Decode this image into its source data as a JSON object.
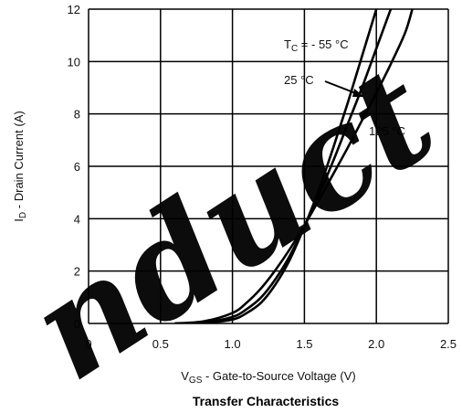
{
  "chart_data": {
    "type": "line",
    "title": "Transfer Characteristics",
    "xlabel": {
      "main": "V",
      "sub": "GS",
      "rest": " - Gate-to-Source Voltage (V)"
    },
    "ylabel": {
      "main": "I",
      "sub": "D",
      "rest": " -  Drain Current (A)"
    },
    "xlim": [
      0,
      2.5
    ],
    "ylim": [
      0,
      12
    ],
    "xticks": [
      0,
      0.5,
      1.0,
      1.5,
      2.0,
      2.5
    ],
    "xtick_labels": [
      "0",
      "0.5",
      "1.0",
      "1.5",
      "2.0",
      "2.5"
    ],
    "yticks": [
      0,
      2,
      4,
      6,
      8,
      10,
      12
    ],
    "ytick_labels": [
      "0",
      "2",
      "4",
      "6",
      "8",
      "10",
      "12"
    ],
    "grid": true,
    "series": [
      {
        "name": "-55 °C",
        "x": [
          0.6,
          0.8,
          1.0,
          1.1,
          1.2,
          1.3,
          1.4,
          1.5,
          1.6,
          1.7,
          1.8,
          1.9,
          2.0
        ],
        "y": [
          0,
          0.02,
          0.15,
          0.4,
          0.8,
          1.5,
          2.45,
          3.7,
          5.1,
          6.7,
          8.4,
          10.2,
          12.0
        ]
      },
      {
        "name": "25 °C",
        "x": [
          0.6,
          0.8,
          1.0,
          1.1,
          1.2,
          1.3,
          1.4,
          1.5,
          1.6,
          1.7,
          1.8,
          1.9,
          2.0,
          2.1
        ],
        "y": [
          0,
          0.04,
          0.25,
          0.55,
          1.0,
          1.7,
          2.6,
          3.7,
          4.9,
          6.2,
          7.6,
          9.0,
          10.5,
          12.0
        ]
      },
      {
        "name": "125 °C",
        "x": [
          0.6,
          0.8,
          1.0,
          1.1,
          1.2,
          1.3,
          1.4,
          1.5,
          1.6,
          1.7,
          1.8,
          1.9,
          2.0,
          2.1,
          2.2,
          2.25
        ],
        "y": [
          0,
          0.08,
          0.4,
          0.8,
          1.35,
          2.05,
          2.85,
          3.75,
          4.7,
          5.7,
          6.7,
          7.75,
          8.8,
          9.9,
          11.1,
          12.0
        ]
      }
    ],
    "annotations": {
      "tc": {
        "main": "T",
        "sub": "C",
        "rest": " = - 55 °C"
      },
      "t25": "25 °C",
      "t125": "125 °C"
    },
    "watermark": "nduct"
  }
}
